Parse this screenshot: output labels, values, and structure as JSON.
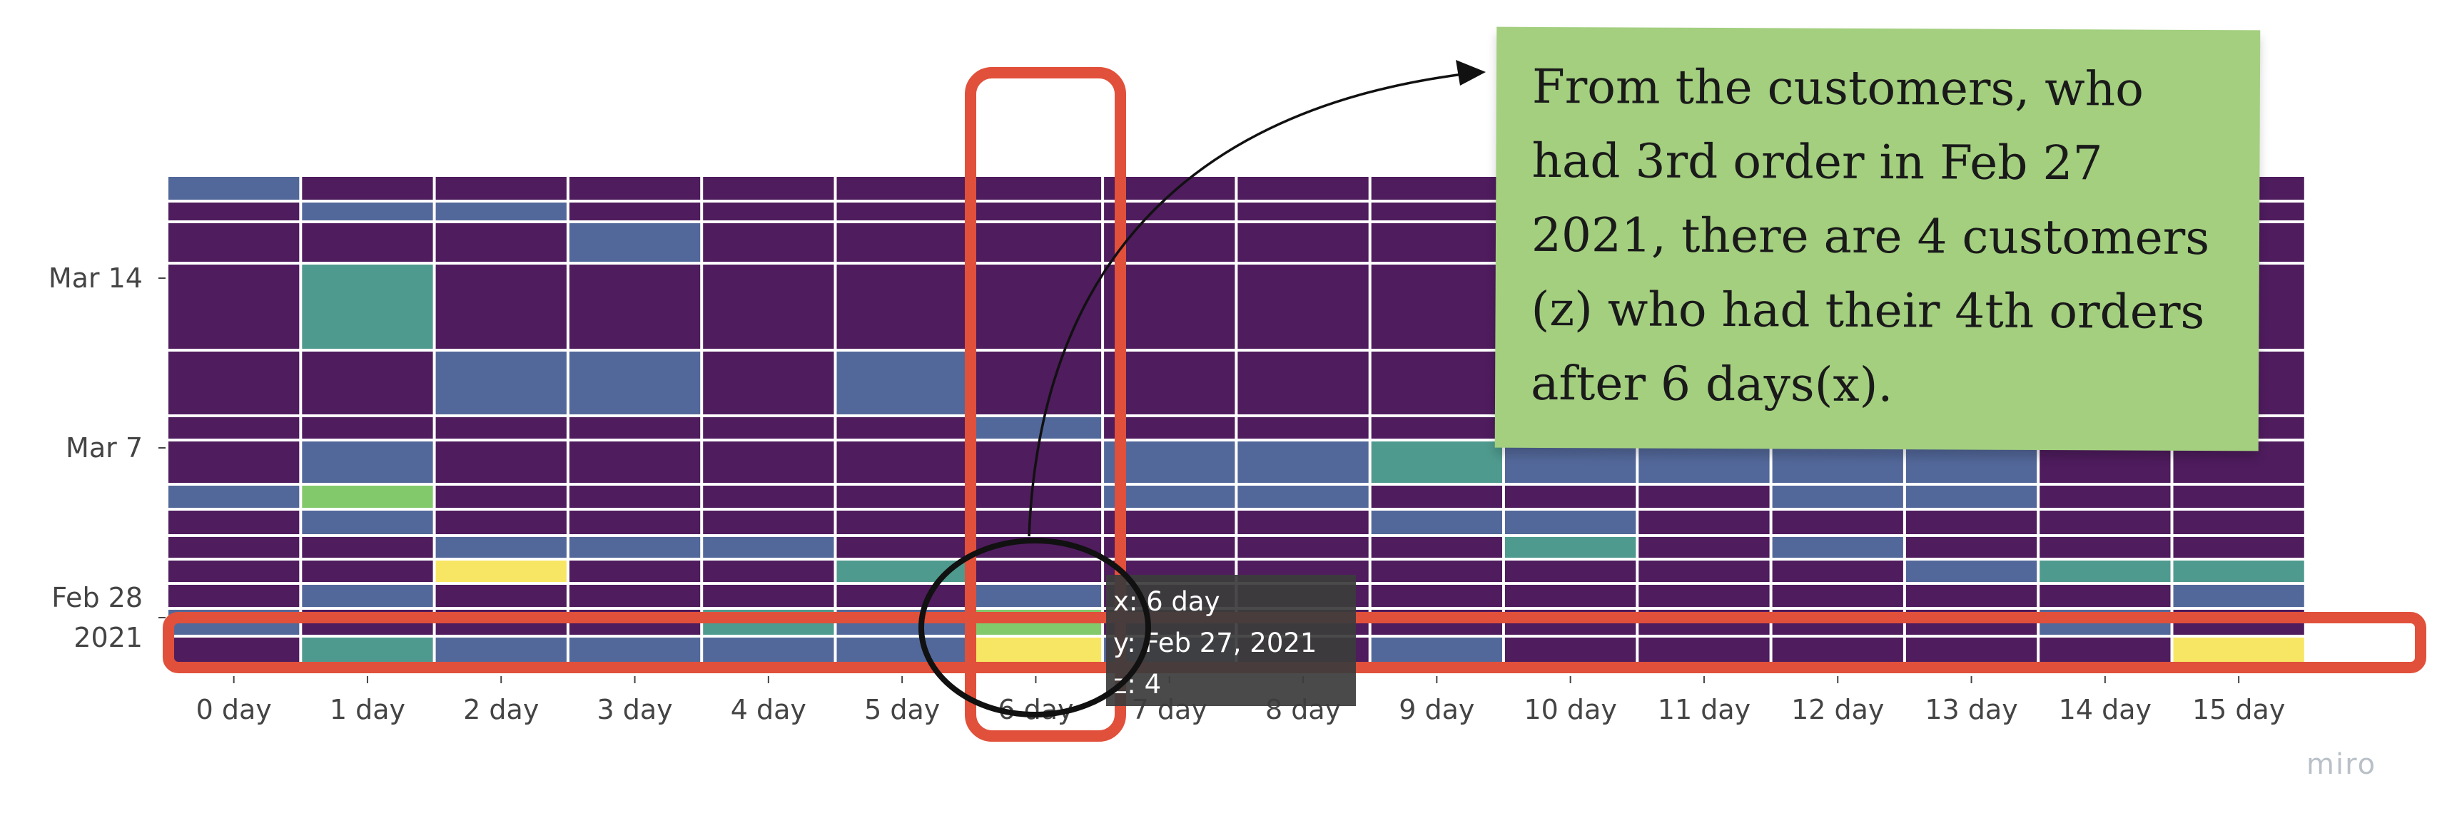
{
  "chart_data": {
    "type": "heatmap",
    "x_categories": [
      "0 day",
      "1 day",
      "2 day",
      "3 day",
      "4 day",
      "5 day",
      "6 day",
      "7 day",
      "8 day",
      "9 day",
      "10 day",
      "11 day",
      "12 day",
      "13 day",
      "14 day",
      "15 day"
    ],
    "y_tick_labels": [
      "Mar 14",
      "Mar 7",
      "Feb 28\n2021"
    ],
    "y_dates": [
      "Feb 27, 2021",
      "Feb 28, 2021",
      "Mar 1, 2021",
      "Mar 2, 2021",
      "Mar 3, 2021",
      "Mar 4, 2021",
      "Mar 5, 2021",
      "Mar 6, 2021",
      "Mar 7, 2021",
      "Mar 10, 2021",
      "Mar 14, 2021",
      "Mar 17, 2021",
      "Mar 18, 2021",
      "Mar 19, 2021"
    ],
    "z": [
      [
        0,
        2,
        1,
        1,
        1,
        1,
        4,
        1,
        0,
        1,
        0,
        0,
        0,
        0,
        0,
        4
      ],
      [
        1,
        0,
        0,
        0,
        2,
        1,
        3,
        0,
        0,
        0,
        0,
        0,
        0,
        0,
        1,
        0
      ],
      [
        0,
        1,
        0,
        0,
        0,
        0,
        1,
        0,
        0,
        0,
        0,
        0,
        0,
        0,
        0,
        1
      ],
      [
        0,
        0,
        4,
        0,
        0,
        2,
        0,
        0,
        0,
        0,
        0,
        0,
        0,
        1,
        2,
        2
      ],
      [
        0,
        0,
        1,
        1,
        1,
        0,
        0,
        0,
        0,
        0,
        2,
        0,
        1,
        0,
        0,
        0
      ],
      [
        0,
        1,
        0,
        0,
        0,
        0,
        0,
        0,
        0,
        1,
        1,
        0,
        0,
        0,
        0,
        0
      ],
      [
        1,
        3,
        0,
        0,
        0,
        0,
        0,
        1,
        1,
        0,
        0,
        0,
        1,
        1,
        0,
        0
      ],
      [
        0,
        1,
        0,
        0,
        0,
        0,
        0,
        1,
        1,
        2,
        1,
        1,
        1,
        1,
        0,
        0
      ],
      [
        0,
        0,
        0,
        0,
        0,
        0,
        1,
        0,
        0,
        0,
        0,
        0,
        0,
        0,
        0,
        0
      ],
      [
        0,
        0,
        1,
        1,
        0,
        1,
        0,
        0,
        0,
        0,
        0,
        0,
        0,
        0,
        0,
        0
      ],
      [
        0,
        2,
        0,
        0,
        0,
        0,
        0,
        0,
        0,
        0,
        0,
        0,
        0,
        0,
        0,
        0
      ],
      [
        0,
        0,
        0,
        1,
        0,
        0,
        0,
        0,
        0,
        0,
        0,
        0,
        0,
        0,
        0,
        0
      ],
      [
        0,
        1,
        1,
        0,
        0,
        0,
        0,
        0,
        0,
        0,
        0,
        0,
        0,
        0,
        0,
        0
      ],
      [
        1,
        0,
        0,
        0,
        0,
        0,
        0,
        0,
        0,
        0,
        0,
        0,
        0,
        0,
        0,
        0
      ]
    ],
    "colorscale": [
      "#4f1c5e",
      "#53689a",
      "#4f9a8e",
      "#82c96c",
      "#f7e663"
    ]
  },
  "tooltip": {
    "x_line": "x: 6 day",
    "y_line": "y: Feb 27, 2021",
    "z_line": "z: 4"
  },
  "annotation": {
    "note_text": "From the customers, who had 3rd order in Feb 27 2021, there are 4 customers (z) who had their 4th orders after 6 days(x).",
    "note_color": "#a3cf7f",
    "highlight_color": "#e1503a"
  },
  "watermark": "miro"
}
